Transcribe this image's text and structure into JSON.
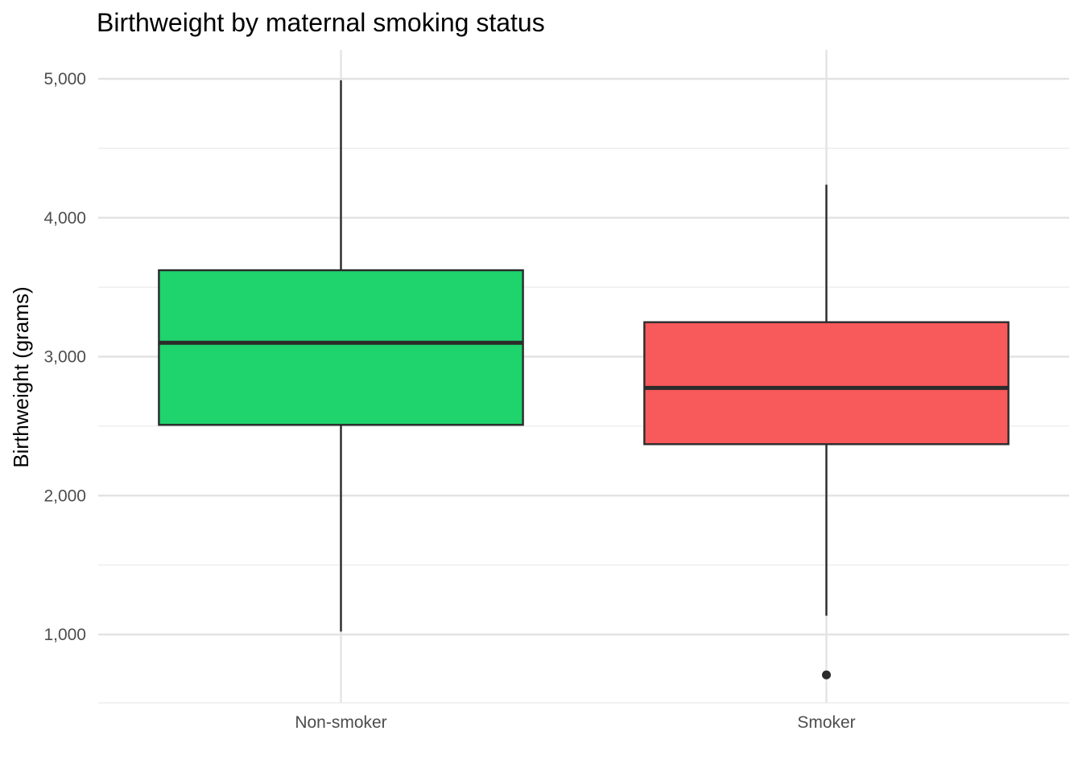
{
  "chart_data": {
    "type": "boxplot",
    "title": "Birthweight by maternal smoking status",
    "xlabel": "",
    "ylabel": "Birthweight (grams)",
    "ylim": [
      500,
      5200
    ],
    "y_ticks": [
      1000,
      2000,
      3000,
      4000,
      5000
    ],
    "y_tick_labels": [
      "1,000",
      "2,000",
      "3,000",
      "4,000",
      "5,000"
    ],
    "y_minor_ticks": [
      1500,
      2500,
      3500,
      4500
    ],
    "grid": true,
    "legend": "none",
    "categories": [
      "Non-smoker",
      "Smoker"
    ],
    "series": [
      {
        "category": "Non-smoker",
        "color": "#1fd36d",
        "min": 1021,
        "q1": 2509,
        "median": 3100,
        "q3": 3622,
        "max": 4990,
        "outliers": []
      },
      {
        "category": "Smoker",
        "color": "#f8595a",
        "min": 1135,
        "q1": 2370,
        "median": 2775,
        "q3": 3248,
        "max": 4238,
        "outliers": [
          709
        ]
      }
    ]
  }
}
